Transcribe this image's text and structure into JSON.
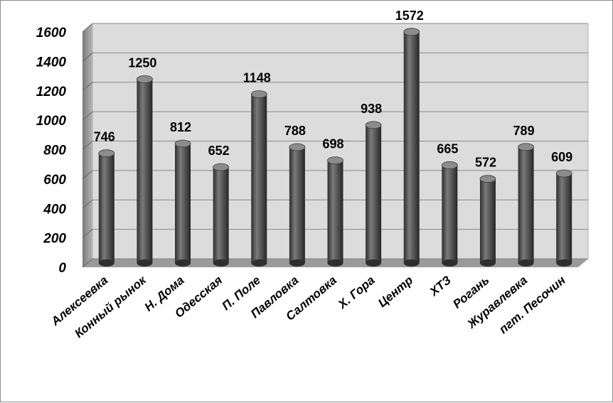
{
  "chart_data": {
    "type": "bar",
    "categories": [
      "Алексеевка",
      "Конный рынок",
      "Н. Дома",
      "Одесская",
      "П. Поле",
      "Павловка",
      "Салтовка",
      "Х. Гора",
      "Центр",
      "ХТЗ",
      "Рогань",
      "Журавлевка",
      "пгт. Песочин"
    ],
    "values": [
      746,
      1250,
      812,
      652,
      1148,
      788,
      698,
      938,
      1572,
      665,
      572,
      789,
      609
    ],
    "title": "",
    "xlabel": "",
    "ylabel": "",
    "ylim": [
      0,
      1600
    ],
    "yticks": [
      0,
      200,
      400,
      600,
      800,
      1000,
      1200,
      1400,
      1600
    ],
    "grid": true,
    "legend": "none",
    "bar_color": "#5e5e5e",
    "wall_color": "#dcdcdc",
    "floor_color": "#9a9a9a"
  }
}
